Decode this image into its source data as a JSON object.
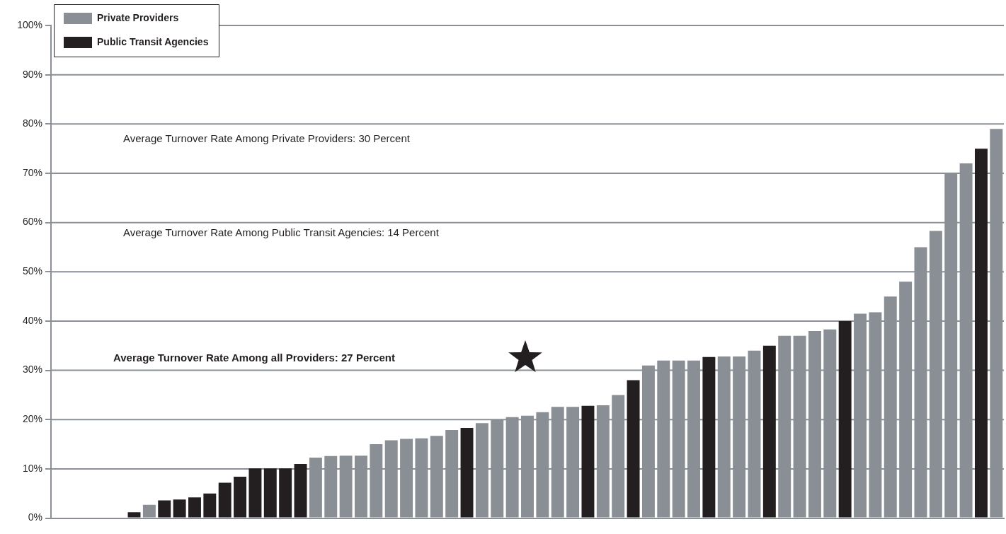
{
  "chart_data": {
    "type": "bar",
    "categories": [
      null,
      null,
      null,
      null,
      null,
      null,
      null,
      null,
      null,
      null,
      null,
      null,
      null,
      null,
      null,
      null,
      null,
      null,
      null,
      null,
      null,
      null,
      null,
      null,
      null,
      null,
      null,
      null,
      null,
      null,
      null,
      null,
      null,
      null,
      null,
      null,
      null,
      null,
      null,
      null,
      null,
      null,
      null,
      null,
      null,
      null,
      null,
      null,
      null,
      null,
      null,
      null,
      null,
      null,
      null,
      null,
      null,
      null,
      null,
      null,
      null,
      null,
      null
    ],
    "series": [
      {
        "name": "Private Providers",
        "color": "#898f95",
        "values": [
          null,
          null,
          null,
          null,
          null,
          null,
          2.7,
          null,
          null,
          null,
          null,
          null,
          null,
          null,
          null,
          null,
          null,
          12.3,
          12.6,
          12.7,
          12.7,
          15.0,
          15.8,
          16.1,
          16.2,
          16.7,
          17.9,
          null,
          19.3,
          20.0,
          20.5,
          20.8,
          21.5,
          22.6,
          22.6,
          null,
          22.9,
          25.0,
          null,
          31.0,
          32.0,
          32.0,
          32.0,
          null,
          32.8,
          32.8,
          34.0,
          null,
          37.0,
          37.0,
          38.0,
          38.3,
          null,
          41.5,
          41.8,
          45.0,
          48.0,
          55.0,
          58.3,
          70.0,
          72.0,
          null,
          79.0
        ]
      },
      {
        "name": "Public Transit Agencies",
        "color": "#231f20",
        "values": [
          null,
          null,
          null,
          null,
          null,
          1.2,
          null,
          3.6,
          3.8,
          4.2,
          5.0,
          7.2,
          8.4,
          10.1,
          10.1,
          10.1,
          11.0,
          null,
          null,
          null,
          null,
          null,
          null,
          null,
          null,
          null,
          null,
          18.3,
          null,
          null,
          null,
          null,
          null,
          null,
          null,
          22.8,
          null,
          null,
          28.0,
          null,
          null,
          null,
          null,
          32.7,
          null,
          null,
          null,
          35.0,
          null,
          null,
          null,
          null,
          40.0,
          null,
          null,
          null,
          null,
          null,
          null,
          null,
          null,
          75.0,
          null
        ]
      }
    ],
    "ylim": [
      0,
      100
    ],
    "yticks": [
      {
        "value": 0,
        "label": "0%"
      },
      {
        "value": 10,
        "label": "10%"
      },
      {
        "value": 20,
        "label": "20%"
      },
      {
        "value": 30,
        "label": "30%"
      },
      {
        "value": 40,
        "label": "40%"
      },
      {
        "value": 50,
        "label": "50%"
      },
      {
        "value": 60,
        "label": "60%"
      },
      {
        "value": 70,
        "label": "70%"
      },
      {
        "value": 80,
        "label": "80%"
      },
      {
        "value": 90,
        "label": "90%"
      },
      {
        "value": 100,
        "label": "100%"
      }
    ],
    "grid": "y",
    "legend": "top left",
    "annotations": [
      "Average Turnover Rate Among Private Providers: 30 Percent",
      "Average Turnover Rate Among Public Transit Agencies: 14 Percent",
      "Average Turnover Rate Among all Providers: 27 Percent"
    ]
  }
}
